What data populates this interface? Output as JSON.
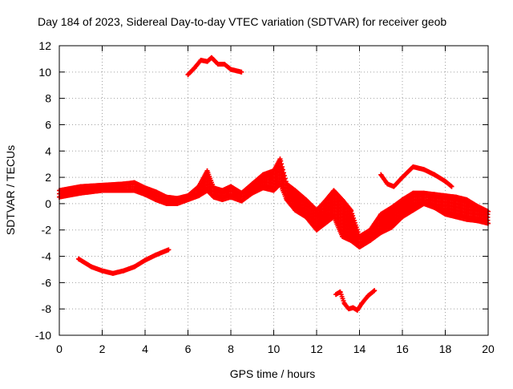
{
  "chart_data": {
    "type": "scatter",
    "title": "Day 184 of 2023, Sidereal Day-to-day VTEC variation (SDTVAR) for receiver geob",
    "xlabel": "GPS time / hours",
    "ylabel": "SDTVAR / TECUs",
    "xlim": [
      0,
      20
    ],
    "ylim": [
      -10,
      12
    ],
    "x_ticks": [
      "0",
      "2",
      "4",
      "6",
      "8",
      "10",
      "12",
      "14",
      "16",
      "18",
      "20"
    ],
    "y_ticks": [
      "-10",
      "-8",
      "-6",
      "-4",
      "-2",
      "0",
      "2",
      "4",
      "6",
      "8",
      "10",
      "12"
    ],
    "grid": true,
    "marker": "+",
    "color": "#ff0000",
    "series": [
      {
        "name": "main-band-upper",
        "x": [
          0,
          1,
          2,
          3,
          3.5,
          4,
          4.5,
          5,
          5.5,
          6,
          6.5,
          6.9,
          7.2,
          7.6,
          8,
          8.5,
          9,
          9.5,
          10,
          10.3,
          10.6,
          11,
          11.5,
          12,
          12.4,
          12.8,
          13.2,
          13.6,
          14,
          14.5,
          15,
          15.5,
          16,
          16.5,
          17,
          17.5,
          18,
          18.5,
          19,
          19.5,
          20
        ],
        "y": [
          1.0,
          1.3,
          1.4,
          1.5,
          1.6,
          1.2,
          0.9,
          0.5,
          0.4,
          0.6,
          1.3,
          2.5,
          1.2,
          1.0,
          1.3,
          0.8,
          1.5,
          2.2,
          2.5,
          3.4,
          1.5,
          1.0,
          0.3,
          -0.5,
          0.2,
          1.0,
          0.3,
          -0.5,
          -2.5,
          -2.0,
          -0.8,
          -0.3,
          0.3,
          0.8,
          0.8,
          0.7,
          0.6,
          0.5,
          0.3,
          -0.2,
          -0.6
        ]
      },
      {
        "name": "main-band-lower",
        "x": [
          0,
          1,
          2,
          3,
          3.5,
          4,
          4.5,
          5,
          5.5,
          6,
          6.5,
          6.9,
          7.2,
          7.6,
          8,
          8.5,
          9,
          9.5,
          10,
          10.3,
          10.6,
          11,
          11.5,
          12,
          12.4,
          12.8,
          13.2,
          13.6,
          14,
          14.5,
          15,
          15.5,
          16,
          16.5,
          17,
          17.5,
          18,
          18.5,
          19,
          19.5,
          20
        ],
        "y": [
          0.5,
          0.8,
          1.0,
          1.0,
          1.0,
          0.7,
          0.3,
          0.0,
          0.0,
          0.3,
          0.6,
          1.0,
          0.5,
          0.3,
          0.5,
          0.2,
          0.8,
          1.2,
          1.0,
          1.5,
          0.3,
          -0.5,
          -1.0,
          -2.0,
          -1.5,
          -1.0,
          -2.5,
          -2.8,
          -3.3,
          -2.8,
          -2.2,
          -1.8,
          -1.0,
          -0.5,
          0.0,
          -0.3,
          -0.8,
          -1.0,
          -1.2,
          -1.3,
          -1.5
        ]
      },
      {
        "name": "segment-low-arc",
        "x": [
          0.9,
          1.5,
          2,
          2.5,
          3,
          3.5,
          4,
          4.5,
          5.1
        ],
        "y": [
          -4.2,
          -4.8,
          -5.1,
          -5.3,
          -5.1,
          -4.8,
          -4.3,
          -3.9,
          -3.5
        ]
      },
      {
        "name": "segment-high-arc",
        "x": [
          6.0,
          6.3,
          6.6,
          6.9,
          7.1,
          7.4,
          7.7,
          8.0,
          8.5
        ],
        "y": [
          9.8,
          10.3,
          10.9,
          10.8,
          11.1,
          10.6,
          10.6,
          10.2,
          10.0
        ]
      },
      {
        "name": "segment-deep-dip",
        "x": [
          12.9,
          13.1,
          13.3,
          13.5,
          13.7,
          13.9,
          14.1,
          14.4,
          14.7
        ],
        "y": [
          -6.9,
          -6.7,
          -7.6,
          -8.0,
          -7.9,
          -8.1,
          -7.6,
          -7.0,
          -6.6
        ]
      },
      {
        "name": "segment-late-arc",
        "x": [
          15.0,
          15.3,
          15.6,
          16.0,
          16.5,
          17.0,
          17.5,
          18.0,
          18.3
        ],
        "y": [
          2.2,
          1.5,
          1.3,
          2.0,
          2.8,
          2.6,
          2.2,
          1.7,
          1.3
        ]
      }
    ]
  }
}
